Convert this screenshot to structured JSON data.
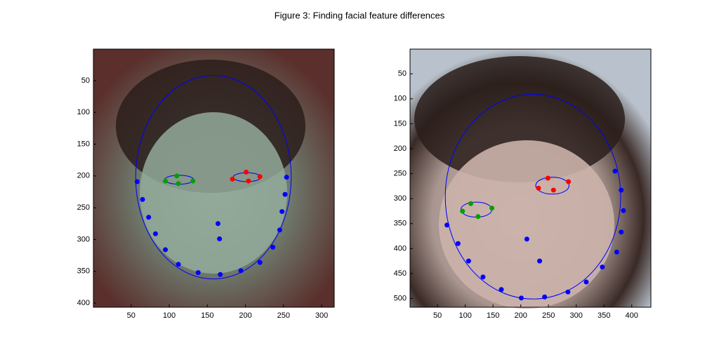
{
  "title": "Figure 3: Finding facial feature differences",
  "chart_data": [
    {
      "type": "scatter",
      "xlim": [
        0.5,
        316.5
      ],
      "ylim": [
        0.5,
        406.5
      ],
      "y_reversed": true,
      "xticks": [
        50,
        100,
        150,
        200,
        250,
        300
      ],
      "yticks": [
        50,
        100,
        150,
        200,
        250,
        300,
        350,
        400
      ],
      "ellipses": [
        {
          "color": "#0000ff",
          "cx": 158,
          "cy": 202,
          "rx": 102,
          "ry": 160
        },
        {
          "color": "#0000ff",
          "cx": 113,
          "cy": 206,
          "rx": 19,
          "ry": 7
        },
        {
          "color": "#0000ff",
          "cx": 202,
          "cy": 202,
          "rx": 18,
          "ry": 7
        }
      ],
      "series": [
        {
          "color": "#0000ff",
          "x": [
            58,
            65,
            73,
            82,
            95,
            112,
            138,
            167,
            194,
            219,
            236,
            245,
            248,
            252,
            254,
            164,
            166
          ],
          "y": [
            209,
            237,
            265,
            291,
            316,
            339,
            352,
            355,
            349,
            336,
            312,
            285,
            256,
            229,
            202,
            275,
            299
          ]
        },
        {
          "color": "#00a000",
          "x": [
            95,
            110,
            112,
            131
          ],
          "y": [
            208,
            200,
            212,
            208
          ]
        },
        {
          "color": "#ff0000",
          "x": [
            183,
            201,
            204,
            219
          ],
          "y": [
            205,
            194,
            208,
            201
          ]
        }
      ]
    },
    {
      "type": "scatter",
      "xlim": [
        0.5,
        434.5
      ],
      "ylim": [
        0.5,
        517.5
      ],
      "y_reversed": true,
      "xticks": [
        50,
        100,
        150,
        200,
        250,
        300,
        350,
        400
      ],
      "yticks": [
        50,
        100,
        150,
        200,
        250,
        300,
        350,
        400,
        450,
        500
      ],
      "ellipses": [
        {
          "color": "#0000ff",
          "cx": 222,
          "cy": 296,
          "rx": 158,
          "ry": 205
        },
        {
          "color": "#0000ff",
          "cx": 120,
          "cy": 322,
          "rx": 28,
          "ry": 15
        },
        {
          "color": "#0000ff",
          "cx": 257,
          "cy": 274,
          "rx": 30,
          "ry": 17
        }
      ],
      "series": [
        {
          "color": "#0000ff",
          "x": [
            67,
            87,
            106,
            132,
            165,
            201,
            243,
            285,
            318,
            347,
            373,
            381,
            385,
            381,
            370,
            211,
            234
          ],
          "y": [
            353,
            390,
            425,
            457,
            482,
            499,
            497,
            487,
            467,
            437,
            407,
            367,
            324,
            283,
            245,
            381,
            425
          ]
        },
        {
          "color": "#00a000",
          "x": [
            110,
            148,
            123,
            95
          ],
          "y": [
            310,
            319,
            336,
            325
          ]
        },
        {
          "color": "#ff0000",
          "x": [
            232,
            249,
            259,
            286
          ],
          "y": [
            279,
            259,
            283,
            266
          ]
        }
      ]
    }
  ]
}
